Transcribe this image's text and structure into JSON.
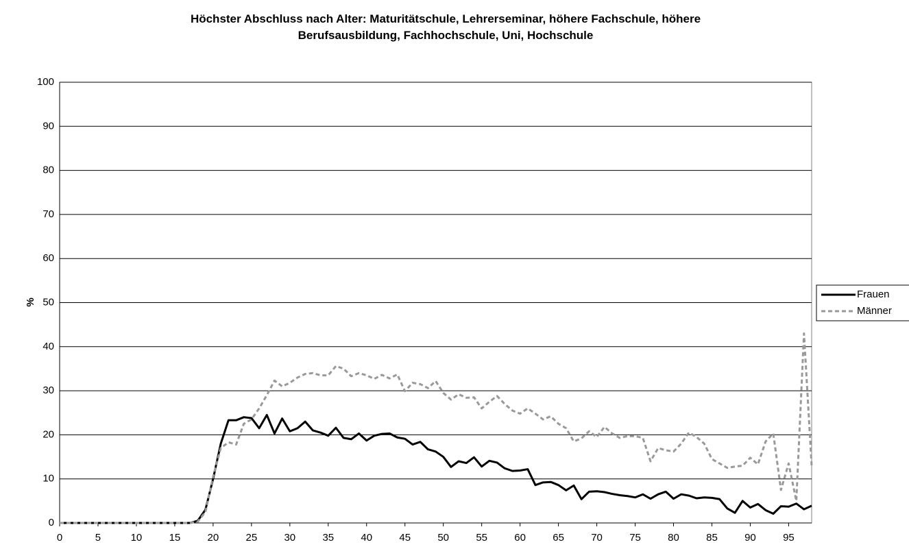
{
  "chart_data": {
    "type": "line",
    "title": "Höchster Abschluss nach Alter: Maturitätschule, Lehrerseminar, höhere Fachschule, höhere Berufsausbildung, Fachhochschule, Uni, Hochschule",
    "y_label": "%",
    "x": [
      0,
      1,
      2,
      3,
      4,
      5,
      6,
      7,
      8,
      9,
      10,
      11,
      12,
      13,
      14,
      15,
      16,
      17,
      18,
      19,
      20,
      21,
      22,
      23,
      24,
      25,
      26,
      27,
      28,
      29,
      30,
      31,
      32,
      33,
      34,
      35,
      36,
      37,
      38,
      39,
      40,
      41,
      42,
      43,
      44,
      45,
      46,
      47,
      48,
      49,
      50,
      51,
      52,
      53,
      54,
      55,
      56,
      57,
      58,
      59,
      60,
      61,
      62,
      63,
      64,
      65,
      66,
      67,
      68,
      69,
      70,
      71,
      72,
      73,
      74,
      75,
      76,
      77,
      78,
      79,
      80,
      81,
      82,
      83,
      84,
      85,
      86,
      87,
      88,
      89,
      90,
      91,
      92,
      93,
      94,
      95,
      96,
      97,
      98
    ],
    "xlim": [
      0,
      98
    ],
    "xticks": [
      0,
      5,
      10,
      15,
      20,
      25,
      30,
      35,
      40,
      45,
      50,
      55,
      60,
      65,
      70,
      75,
      80,
      85,
      90,
      95
    ],
    "ylim": [
      0,
      100
    ],
    "yticks": [
      0,
      10,
      20,
      30,
      40,
      50,
      60,
      70,
      80,
      90,
      100
    ],
    "grid": true,
    "legend": "right",
    "series": [
      {
        "name": "Frauen",
        "color": "#000000",
        "dash": "solid",
        "values": [
          0,
          0,
          0,
          0,
          0,
          0,
          0,
          0,
          0,
          0,
          0,
          0,
          0,
          0,
          0,
          0,
          0,
          0,
          0.5,
          3,
          10,
          18,
          23.3,
          23.3,
          24,
          23.8,
          21.5,
          24.5,
          20.3,
          23.7,
          20.8,
          21.5,
          23,
          21,
          20.5,
          19.8,
          21.6,
          19.3,
          19,
          20.3,
          18.7,
          19.8,
          20.2,
          20.3,
          19.4,
          19.1,
          17.8,
          18.4,
          16.7,
          16.2,
          15,
          12.7,
          14,
          13.6,
          14.9,
          12.8,
          14.1,
          13.7,
          12.4,
          11.8,
          11.9,
          12.2,
          8.6,
          9.2,
          9.3,
          8.6,
          7.4,
          8.5,
          5.4,
          7.1,
          7.2,
          7,
          6.6,
          6.3,
          6.1,
          5.8,
          6.5,
          5.5,
          6.5,
          7.1,
          5.5,
          6.5,
          6.2,
          5.6,
          5.8,
          5.7,
          5.4,
          3.3,
          2.3,
          5,
          3.5,
          4.3,
          2.9,
          2.1,
          3.8,
          3.7,
          4.4,
          3.1,
          3.9
        ]
      },
      {
        "name": "Männer",
        "color": "#999999",
        "dash": "dashed",
        "values": [
          0,
          0,
          0,
          0,
          0,
          0,
          0,
          0,
          0,
          0,
          0,
          0,
          0,
          0,
          0,
          0,
          0,
          0,
          0.3,
          2.5,
          10.5,
          17,
          18.3,
          17.8,
          22.5,
          23.5,
          26,
          29,
          32.3,
          31,
          31.8,
          33,
          33.8,
          34,
          33.5,
          33.5,
          35.6,
          35,
          33.3,
          34,
          33.5,
          32.7,
          33.6,
          32.8,
          33.7,
          29.9,
          31.8,
          31.5,
          30.6,
          32.2,
          29.5,
          28,
          29.2,
          28.4,
          28.5,
          26,
          27.5,
          28.8,
          27,
          25.5,
          24.8,
          26,
          24.8,
          23.5,
          24.2,
          22.5,
          21.5,
          18.5,
          19.2,
          20.8,
          19.5,
          21.8,
          20.3,
          19.3,
          19.7,
          19.7,
          19.3,
          14,
          17,
          16.5,
          16.2,
          18,
          20.5,
          19.5,
          18,
          14.5,
          13.5,
          12.5,
          12.8,
          13,
          14.8,
          13.3,
          18.5,
          20.3,
          7.5,
          13.5,
          5,
          43,
          13
        ]
      }
    ]
  }
}
